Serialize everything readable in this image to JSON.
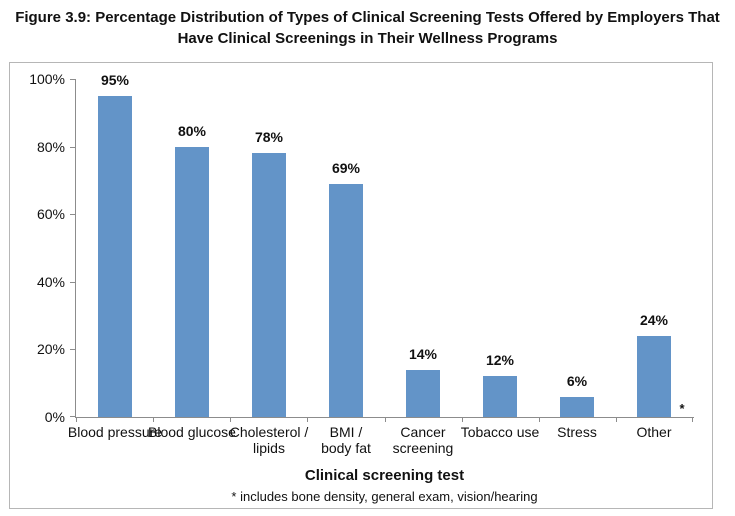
{
  "figure": {
    "title": "Figure 3.9: Percentage Distribution of Types of Clinical Screening Tests Offered by Employers That\nHave Clinical Screenings in Their Wellness Programs"
  },
  "chart_data": {
    "type": "bar",
    "title": "Figure 3.9: Percentage Distribution of Types of Clinical Screening Tests Offered by Employers That Have Clinical Screenings in Their Wellness Programs",
    "categories": [
      "Blood pressure",
      "Blood glucose",
      "Cholesterol /\nlipids",
      "BMI /\nbody fat",
      "Cancer\nscreening",
      "Tobacco use",
      "Stress",
      "Other"
    ],
    "values": [
      95,
      80,
      78,
      69,
      14,
      12,
      6,
      24
    ],
    "data_labels": [
      "95%",
      "80%",
      "78%",
      "69%",
      "14%",
      "12%",
      "6%",
      "24%"
    ],
    "xlabel": "Clinical screening test",
    "ylabel": "",
    "ylim": [
      0,
      100
    ],
    "yticks": [
      "0%",
      "20%",
      "40%",
      "60%",
      "80%",
      "100%"
    ],
    "grid": false,
    "legend": "none",
    "bar_color": "#6394c8",
    "axis_color": "#8c8c8c",
    "footnote_marker": "*",
    "footnote": "* includes bone density, general exam, vision/hearing"
  }
}
